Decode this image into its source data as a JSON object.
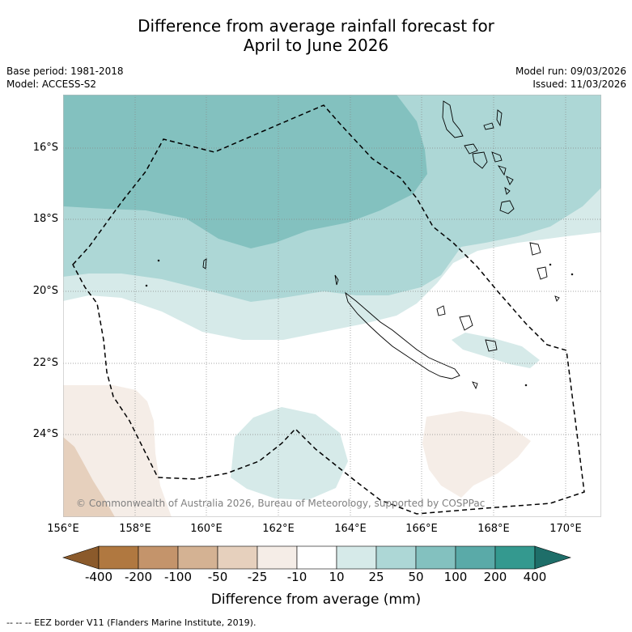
{
  "title": {
    "line1": "Difference from average rainfall forecast for",
    "line2": "April to June 2026"
  },
  "meta": {
    "base_period": "Base period: 1981-2018",
    "model": "Model: ACCESS-S2",
    "model_run": "Model run: 09/03/2026",
    "issued": "Issued: 11/03/2026"
  },
  "map": {
    "lat_labels": [
      "16°S",
      "18°S",
      "20°S",
      "22°S",
      "24°S"
    ],
    "lon_labels": [
      "156°E",
      "158°E",
      "160°E",
      "162°E",
      "164°E",
      "166°E",
      "168°E",
      "170°E"
    ],
    "copyright": "© Commonwealth of Australia 2026, Bureau of Meteorology, supported by COSPPac",
    "colors": {
      "wet_100_200": "#83c1bf",
      "wet_50_100": "#add7d6",
      "wet_25_50": "#d6eae9",
      "dry_25_50": "#f5ede7",
      "dry_50_100": "#e6d0bd"
    }
  },
  "colorbar": {
    "tick_labels": [
      "-400",
      "-200",
      "-100",
      "-50",
      "-25",
      "-10",
      "10",
      "25",
      "50",
      "100",
      "200",
      "400"
    ],
    "colors": [
      "#8b5a2b",
      "#b07840",
      "#c4946b",
      "#d4b293",
      "#e6d0bd",
      "#f5ede7",
      "#ffffff",
      "#d6eae9",
      "#add7d6",
      "#83c1bf",
      "#5aaaa8",
      "#34998f",
      "#1e6e69"
    ],
    "label": "Difference from average (mm)"
  },
  "legend": {
    "eez": "--  --  -- EEZ border V11 (Flanders Marine Institute, 2019)."
  }
}
